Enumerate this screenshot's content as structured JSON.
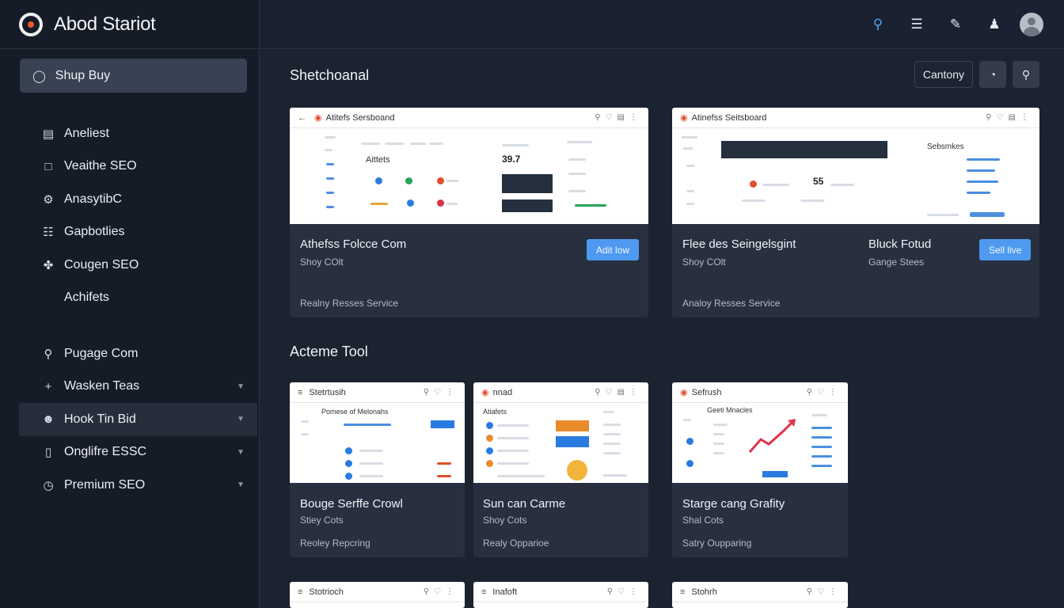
{
  "brand": {
    "name": "Abod Stariot"
  },
  "sidebar": {
    "primary_button": "Shup Buy",
    "items": [
      {
        "label": "Aneliest",
        "icon": "document-icon"
      },
      {
        "label": "Veaithe SEO",
        "icon": "file-icon"
      },
      {
        "label": "AnasytibC",
        "icon": "settings-icon"
      },
      {
        "label": "Gapbotlies",
        "icon": "database-icon"
      },
      {
        "label": "Cougen SEO",
        "icon": "share-icon"
      },
      {
        "label": "Achifets",
        "icon": ""
      }
    ],
    "items2": [
      {
        "label": "Pugage Com",
        "icon": "search-icon"
      },
      {
        "label": "Wasken Teas",
        "icon": "plus-icon"
      },
      {
        "label": "Hook Tin Bid",
        "icon": "user-icon"
      },
      {
        "label": "Onglifre ESSC",
        "icon": "phone-icon"
      },
      {
        "label": "Premium SEO",
        "icon": "clock-icon"
      }
    ]
  },
  "topbar": {
    "icons": [
      "search-icon",
      "list-icon",
      "edit-icon",
      "user-icon",
      "avatar"
    ]
  },
  "main": {
    "section1_title": "Shetchoanal",
    "actions": {
      "button_label": "Cantony"
    },
    "section2_title": "Acteme Tool",
    "featured": [
      {
        "thumb_title": "Atitefs Sersboand",
        "title": "Athefss Folcce Com",
        "subtitle": "Shoy COlt",
        "footer": "Realny Resses Service",
        "button": "Adit low",
        "metric": "39.7",
        "thumb_label": "Aittets"
      },
      {
        "thumb_title": "Atinefss Seitsboard",
        "title": "Flee des Seingelsgint",
        "subtitle": "Shoy COlt",
        "title2": "Bluck Fotud",
        "subtitle2": "Gange Stees",
        "footer": "Analoy Resses Service",
        "button": "Sell live",
        "metric": "55",
        "thumb_label": "Sebsmkes"
      }
    ],
    "tools": [
      {
        "thumb_title": "Stetrtusih",
        "thumb_heading": "Pomese of Melonahs",
        "title": "Bouge Serffe Crowl",
        "subtitle": "Stiey Cots",
        "footer": "Reoley Repcring"
      },
      {
        "thumb_title": "nnad",
        "thumb_heading": "Atiafets",
        "title": "Sun can Carme",
        "subtitle": "Shoy Cots",
        "footer": "Realy Opparioe"
      },
      {
        "thumb_title": "Sefrush",
        "thumb_heading": "Geeti Mnacles",
        "title": "Starge cang Grafity",
        "subtitle": "Shal Cots",
        "footer": "Satry Oupparing"
      }
    ],
    "tools_row2": [
      {
        "thumb_title": "Stotrioch"
      },
      {
        "thumb_title": "Inafoft"
      },
      {
        "thumb_title": "Stohrh"
      }
    ]
  }
}
